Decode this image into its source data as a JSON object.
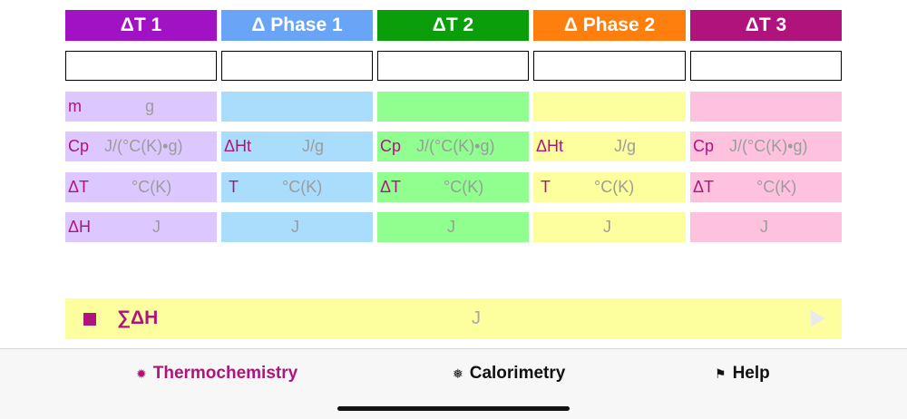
{
  "colors": {
    "header_1": "#a012c4",
    "header_2": "#6aa4f7",
    "header_3": "#0a9e0a",
    "header_4": "#ff7f0e",
    "header_5": "#b0147c",
    "cell_1": "#dcc8ff",
    "cell_2": "#a9ddfb",
    "cell_3": "#90ff90",
    "cell_4": "#fdff9e",
    "cell_5": "#ffc2de",
    "accent": "#b0147c"
  },
  "headers": [
    "ΔT 1",
    "Δ Phase 1",
    "ΔT 2",
    "Δ Phase 2",
    "ΔT 3"
  ],
  "columns": [
    {
      "rows": [
        {
          "symbol": "m",
          "unit": "g"
        },
        {
          "symbol": "Cp",
          "unit": "J/(°C(K)•g)"
        },
        {
          "symbol": "ΔT",
          "unit": "°C(K)"
        },
        {
          "symbol": "ΔH",
          "unit": "J"
        }
      ]
    },
    {
      "rows": [
        {
          "symbol": "",
          "unit": ""
        },
        {
          "symbol": "ΔHt",
          "unit": "J/g"
        },
        {
          "symbol": "T",
          "unit": "°C(K)"
        },
        {
          "symbol": "",
          "unit": "J"
        }
      ]
    },
    {
      "rows": [
        {
          "symbol": "",
          "unit": ""
        },
        {
          "symbol": "Cp",
          "unit": "J/(°C(K)•g)"
        },
        {
          "symbol": "ΔT",
          "unit": "°C(K)"
        },
        {
          "symbol": "",
          "unit": "J"
        }
      ]
    },
    {
      "rows": [
        {
          "symbol": "",
          "unit": ""
        },
        {
          "symbol": "ΔHt",
          "unit": "J/g"
        },
        {
          "symbol": "T",
          "unit": "°C(K)"
        },
        {
          "symbol": "",
          "unit": "J"
        }
      ]
    },
    {
      "rows": [
        {
          "symbol": "",
          "unit": ""
        },
        {
          "symbol": "Cp",
          "unit": "J/(°C(K)•g)"
        },
        {
          "symbol": "ΔT",
          "unit": "°C(K)"
        },
        {
          "symbol": "",
          "unit": "J"
        }
      ]
    }
  ],
  "inputs": [
    "",
    "",
    "",
    "",
    ""
  ],
  "sum": {
    "label": "∑ΔH",
    "unit": "J"
  },
  "tabs": [
    {
      "icon": "✹",
      "label": "Thermochemistry",
      "active": true
    },
    {
      "icon": "❅",
      "label": "Calorimetry",
      "active": false
    },
    {
      "icon": "⚑",
      "label": "Help",
      "active": false
    }
  ]
}
